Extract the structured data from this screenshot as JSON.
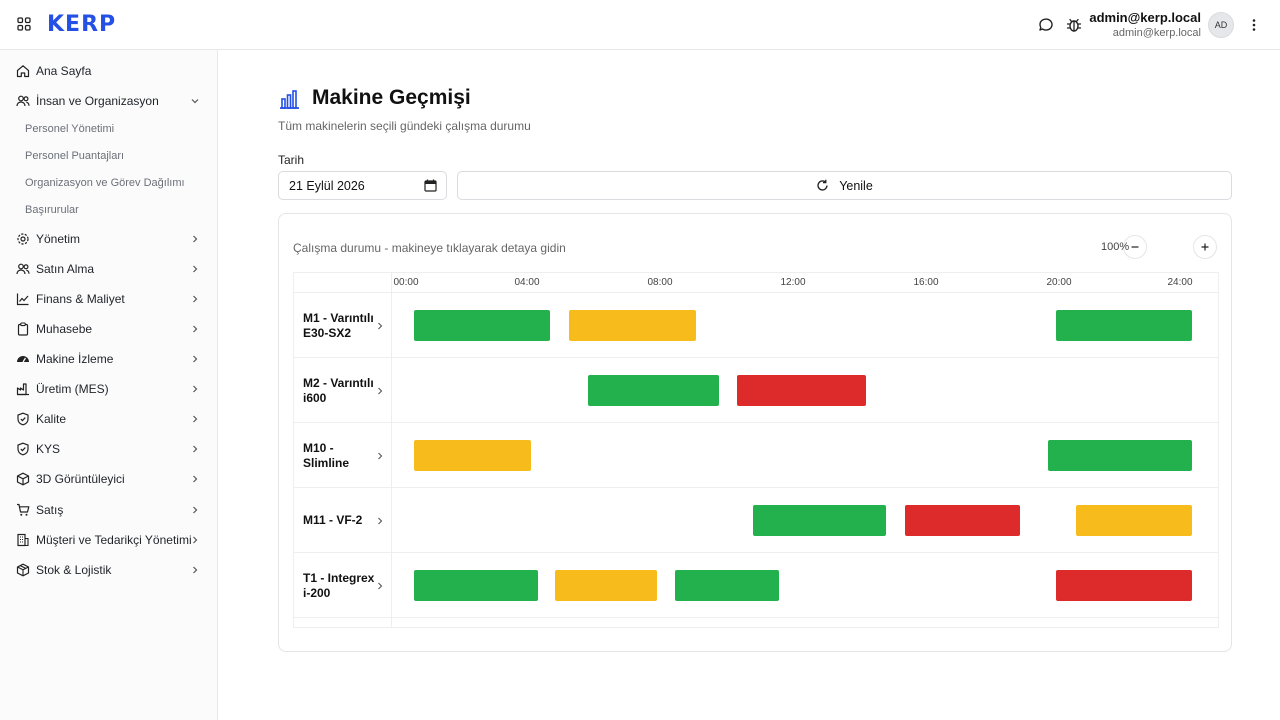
{
  "app": {
    "logo": "KERP",
    "user_name": "admin@kerp.local",
    "user_email": "admin@kerp.local",
    "avatar": "AD",
    "icons": [
      "grid-icon",
      "chat-icon",
      "bug-icon",
      "more-vertical-icon"
    ]
  },
  "sidebar": {
    "items": [
      {
        "label": "Ana Sayfa",
        "icon": "home-icon",
        "chevron": "none"
      },
      {
        "label": "İnsan ve Organizasyon",
        "icon": "users-icon",
        "chevron": "down"
      },
      {
        "label": "Yönetim",
        "icon": "gear-icon",
        "chevron": "right"
      },
      {
        "label": "Satın Alma",
        "icon": "users-icon",
        "chevron": "right"
      },
      {
        "label": "Finans & Maliyet",
        "icon": "chart-line-icon",
        "chevron": "right"
      },
      {
        "label": "Muhasebe",
        "icon": "clipboard-icon",
        "chevron": "right"
      },
      {
        "label": "Makine İzleme",
        "icon": "gauge-icon",
        "chevron": "right"
      },
      {
        "label": "Üretim (MES)",
        "icon": "factory-icon",
        "chevron": "right"
      },
      {
        "label": "Kalite",
        "icon": "shield-check-icon",
        "chevron": "right"
      },
      {
        "label": "KYS",
        "icon": "shield-check-icon",
        "chevron": "right"
      },
      {
        "label": "3D Görüntüleyici",
        "icon": "cube-icon",
        "chevron": "right"
      },
      {
        "label": "Satış",
        "icon": "cart-icon",
        "chevron": "right"
      },
      {
        "label": "Müşteri ve Tedarikçi Yönetimi",
        "icon": "building-icon",
        "chevron": "right"
      },
      {
        "label": "Stok & Lojistik",
        "icon": "package-icon",
        "chevron": "right"
      }
    ],
    "subitems": [
      "Personel Yönetimi",
      "Personel Puantajları",
      "Organizasyon ve Görev Dağılımı",
      "Başırurular"
    ]
  },
  "page": {
    "title": "Makine Geçmişi",
    "subtitle": "Tüm makinelerin seçili gündeki çalışma durumu",
    "date_label": "Tarih",
    "date_value": "21 Eylül 2026",
    "refresh_label": "Yenile",
    "card_caption": "Çalışma durumu - makineye tıklayarak detaya gidin",
    "zoom": "100%"
  },
  "colors": {
    "accent": "#2450e6",
    "running": "#22b14c",
    "idle": "#f8bb1c",
    "stopped": "#dd2a2a"
  },
  "timeline": {
    "ticks": [
      "00:00",
      "04:00",
      "08:00",
      "12:00",
      "16:00",
      "20:00",
      "24:00"
    ],
    "machines": [
      {
        "name": "M1 - Varıntılı E30-SX2",
        "segments": [
          {
            "start": "00:36",
            "end": "04:41",
            "status": "running"
          },
          {
            "start": "05:16",
            "end": "09:05",
            "status": "idle"
          },
          {
            "start": "19:54",
            "end": "24:00",
            "status": "running"
          }
        ]
      },
      {
        "name": "M2 - Varıntılı i600",
        "segments": [
          {
            "start": "05:50",
            "end": "09:46",
            "status": "running"
          },
          {
            "start": "10:19",
            "end": "14:12",
            "status": "stopped"
          }
        ]
      },
      {
        "name": "M10 - Slimline",
        "segments": [
          {
            "start": "00:36",
            "end": "04:07",
            "status": "idle"
          },
          {
            "start": "19:40",
            "end": "24:00",
            "status": "running"
          }
        ]
      },
      {
        "name": "M11 - VF-2",
        "segments": [
          {
            "start": "10:47",
            "end": "14:47",
            "status": "running"
          },
          {
            "start": "15:22",
            "end": "18:50",
            "status": "stopped"
          },
          {
            "start": "20:31",
            "end": "24:00",
            "status": "idle"
          }
        ]
      },
      {
        "name": "T1 - Integrex i-200",
        "segments": [
          {
            "start": "00:36",
            "end": "04:20",
            "status": "running"
          },
          {
            "start": "04:50",
            "end": "07:55",
            "status": "idle"
          },
          {
            "start": "08:27",
            "end": "11:35",
            "status": "running"
          },
          {
            "start": "19:54",
            "end": "24:00",
            "status": "stopped"
          }
        ]
      }
    ]
  }
}
